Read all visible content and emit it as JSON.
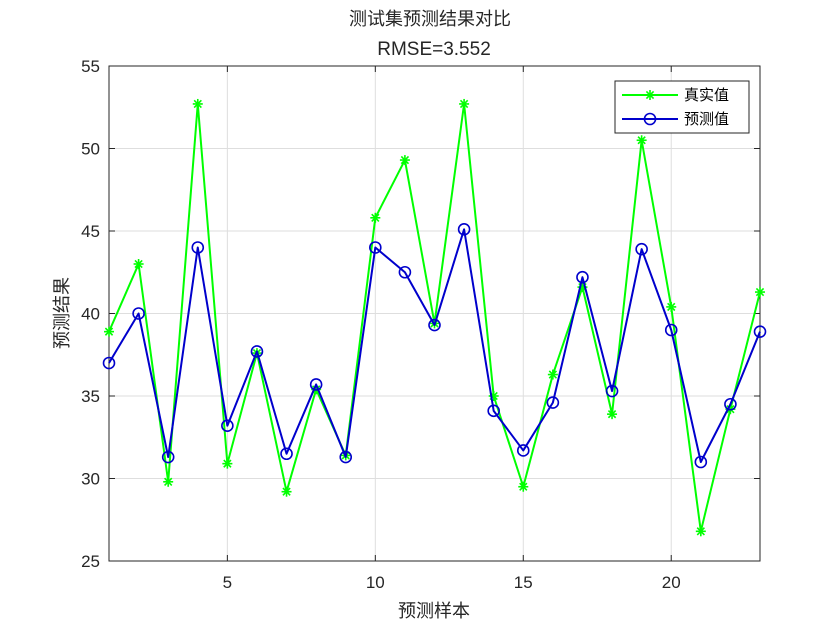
{
  "chart_data": {
    "type": "line",
    "title": "测试集预测结果对比",
    "subtitle": "RMSE=3.552",
    "xlabel": "预测样本",
    "ylabel": "预测结果",
    "xlim": [
      1,
      23
    ],
    "ylim": [
      25,
      55
    ],
    "xticks": [
      5,
      10,
      15,
      20
    ],
    "yticks": [
      25,
      30,
      35,
      40,
      45,
      50,
      55
    ],
    "grid": true,
    "legend_position": "top-right",
    "x": [
      1,
      2,
      3,
      4,
      5,
      6,
      7,
      8,
      9,
      10,
      11,
      12,
      13,
      14,
      15,
      16,
      17,
      18,
      19,
      20,
      21,
      22,
      23
    ],
    "series": [
      {
        "name": "真实值",
        "color": "#00ff00",
        "marker": "asterisk",
        "values": [
          38.9,
          43.0,
          29.8,
          52.7,
          30.9,
          37.6,
          29.2,
          35.4,
          31.4,
          45.8,
          49.3,
          39.4,
          52.7,
          35.0,
          29.5,
          36.3,
          41.6,
          33.9,
          50.5,
          40.4,
          26.8,
          34.2,
          41.3
        ]
      },
      {
        "name": "预测值",
        "color": "#0000cc",
        "marker": "circle",
        "values": [
          37.0,
          40.0,
          31.3,
          44.0,
          33.2,
          37.7,
          31.5,
          35.7,
          31.3,
          44.0,
          42.5,
          39.3,
          45.1,
          34.1,
          31.7,
          34.6,
          42.2,
          35.3,
          43.9,
          39.0,
          31.0,
          34.5,
          38.9
        ]
      }
    ]
  }
}
